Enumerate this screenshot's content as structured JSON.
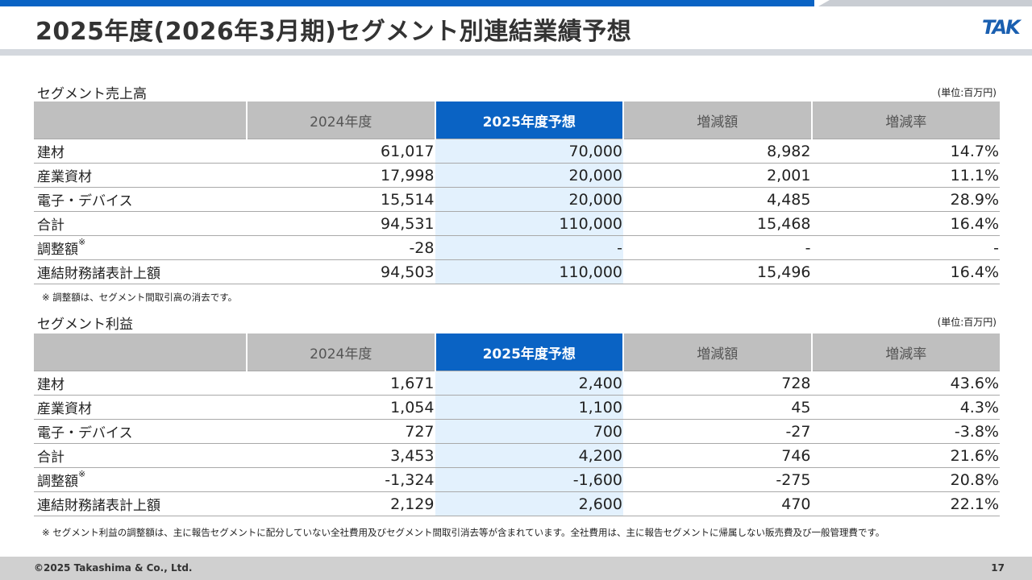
{
  "page_title": "2025年度(2026年3月期)セグメント別連結業績予想",
  "logo_text": "TAK",
  "sales": {
    "title": "セグメント売上高",
    "unit": "(単位:百万円)",
    "headers": [
      "",
      "2024年度",
      "2025年度予想",
      "増減額",
      "増減率"
    ],
    "rows": [
      {
        "label": "建材",
        "note": "",
        "values": [
          "61,017",
          "70,000",
          "8,982",
          "14.7%"
        ]
      },
      {
        "label": "産業資材",
        "note": "",
        "values": [
          "17,998",
          "20,000",
          "2,001",
          "11.1%"
        ]
      },
      {
        "label": "電子・デバイス",
        "note": "",
        "values": [
          "15,514",
          "20,000",
          "4,485",
          "28.9%"
        ]
      },
      {
        "label": "合計",
        "note": "",
        "values": [
          "94,531",
          "110,000",
          "15,468",
          "16.4%"
        ]
      },
      {
        "label": "調整額",
        "note": "※",
        "values": [
          "-28",
          "-",
          "-",
          "-"
        ]
      },
      {
        "label": "連結財務諸表計上額",
        "note": "",
        "values": [
          "94,503",
          "110,000",
          "15,496",
          "16.4%"
        ]
      }
    ],
    "footnote": "※ 調整額は、セグメント間取引高の消去です。"
  },
  "profit": {
    "title": "セグメント利益",
    "unit": "(単位:百万円)",
    "headers": [
      "",
      "2024年度",
      "2025年度予想",
      "増減額",
      "増減率"
    ],
    "rows": [
      {
        "label": "建材",
        "note": "",
        "values": [
          "1,671",
          "2,400",
          "728",
          "43.6%"
        ]
      },
      {
        "label": "産業資材",
        "note": "",
        "values": [
          "1,054",
          "1,100",
          "45",
          "4.3%"
        ]
      },
      {
        "label": "電子・デバイス",
        "note": "",
        "values": [
          "727",
          "700",
          "-27",
          "-3.8%"
        ]
      },
      {
        "label": "合計",
        "note": "",
        "values": [
          "3,453",
          "4,200",
          "746",
          "21.6%"
        ]
      },
      {
        "label": "調整額",
        "note": "※",
        "values": [
          "-1,324",
          "-1,600",
          "-275",
          "20.8%"
        ]
      },
      {
        "label": "連結財務諸表計上額",
        "note": "",
        "values": [
          "2,129",
          "2,600",
          "470",
          "22.1%"
        ]
      }
    ],
    "footnote": "※ セグメント利益の調整額は、主に報告セグメントに配分していない全社費用及びセグメント間取引消去等が含まれています。全社費用は、主に報告セグメントに帰属しない販売費及び一般管理費です。"
  },
  "footer": {
    "copyright": "©2025 Takashima & Co., Ltd.",
    "page_number": "17"
  },
  "colors": {
    "accent_blue": "#0a63c4",
    "highlight_cell": "#e3f1fd",
    "header_grey": "#bfbfbf"
  }
}
